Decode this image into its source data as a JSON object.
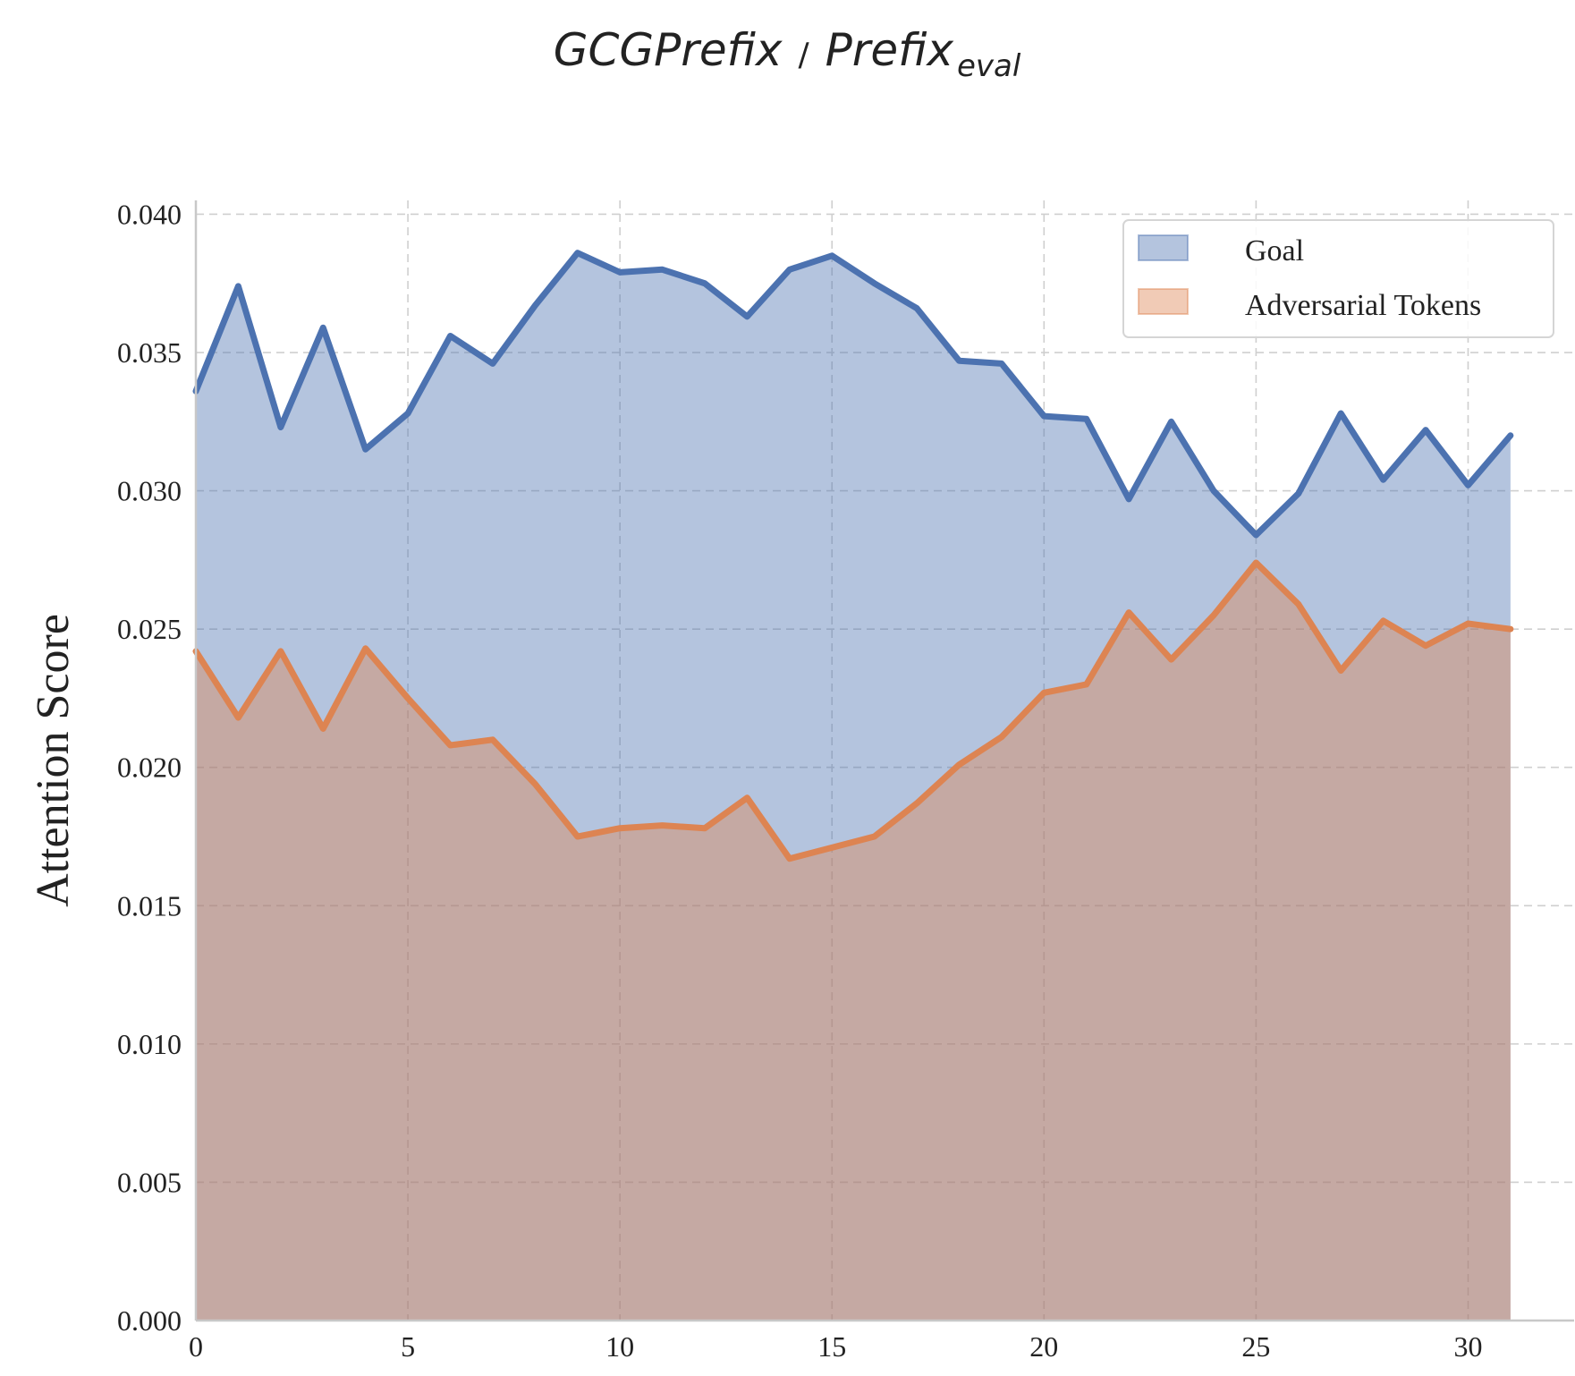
{
  "chart_data": {
    "type": "area",
    "title": {
      "left": "GCGPrefix",
      "separator": "/",
      "right": "Prefix",
      "right_subscript": "eval"
    },
    "xlabel": "",
    "ylabel": "Attention Score",
    "xlim": [
      0,
      32.5
    ],
    "ylim": [
      0,
      0.0405
    ],
    "x_ticks": [
      0,
      5,
      10,
      15,
      20,
      25,
      30
    ],
    "y_ticks": [
      "0.000",
      "0.005",
      "0.010",
      "0.015",
      "0.020",
      "0.025",
      "0.030",
      "0.035",
      "0.040"
    ],
    "grid": true,
    "legend_position": "top-right",
    "x": [
      0,
      1,
      2,
      3,
      4,
      5,
      6,
      7,
      8,
      9,
      10,
      11,
      12,
      13,
      14,
      15,
      16,
      17,
      18,
      19,
      20,
      21,
      22,
      23,
      24,
      25,
      26,
      27,
      28,
      29,
      30,
      31
    ],
    "series": [
      {
        "name": "Goal",
        "line_color": "#4c72b0",
        "fill_color": "#4c72b0",
        "values": [
          0.0336,
          0.0374,
          0.0323,
          0.0359,
          0.0315,
          0.0328,
          0.0356,
          0.0346,
          0.0367,
          0.0386,
          0.0379,
          0.038,
          0.0375,
          0.0363,
          0.038,
          0.0385,
          0.0375,
          0.0366,
          0.0347,
          0.0346,
          0.0327,
          0.0326,
          0.0297,
          0.0325,
          0.03,
          0.0284,
          0.0299,
          0.0328,
          0.0304,
          0.0322,
          0.0302,
          0.032
        ]
      },
      {
        "name": "Adversarial Tokens",
        "line_color": "#dd8452",
        "fill_color": "#dd8452",
        "values": [
          0.0242,
          0.0218,
          0.0242,
          0.0214,
          0.0243,
          0.0225,
          0.0208,
          0.021,
          0.0194,
          0.0175,
          0.0178,
          0.0179,
          0.0178,
          0.0189,
          0.0167,
          0.0171,
          0.0175,
          0.0187,
          0.0201,
          0.0211,
          0.0227,
          0.023,
          0.0256,
          0.0239,
          0.0255,
          0.0274,
          0.0259,
          0.0235,
          0.0253,
          0.0244,
          0.0252,
          0.025
        ]
      }
    ]
  }
}
